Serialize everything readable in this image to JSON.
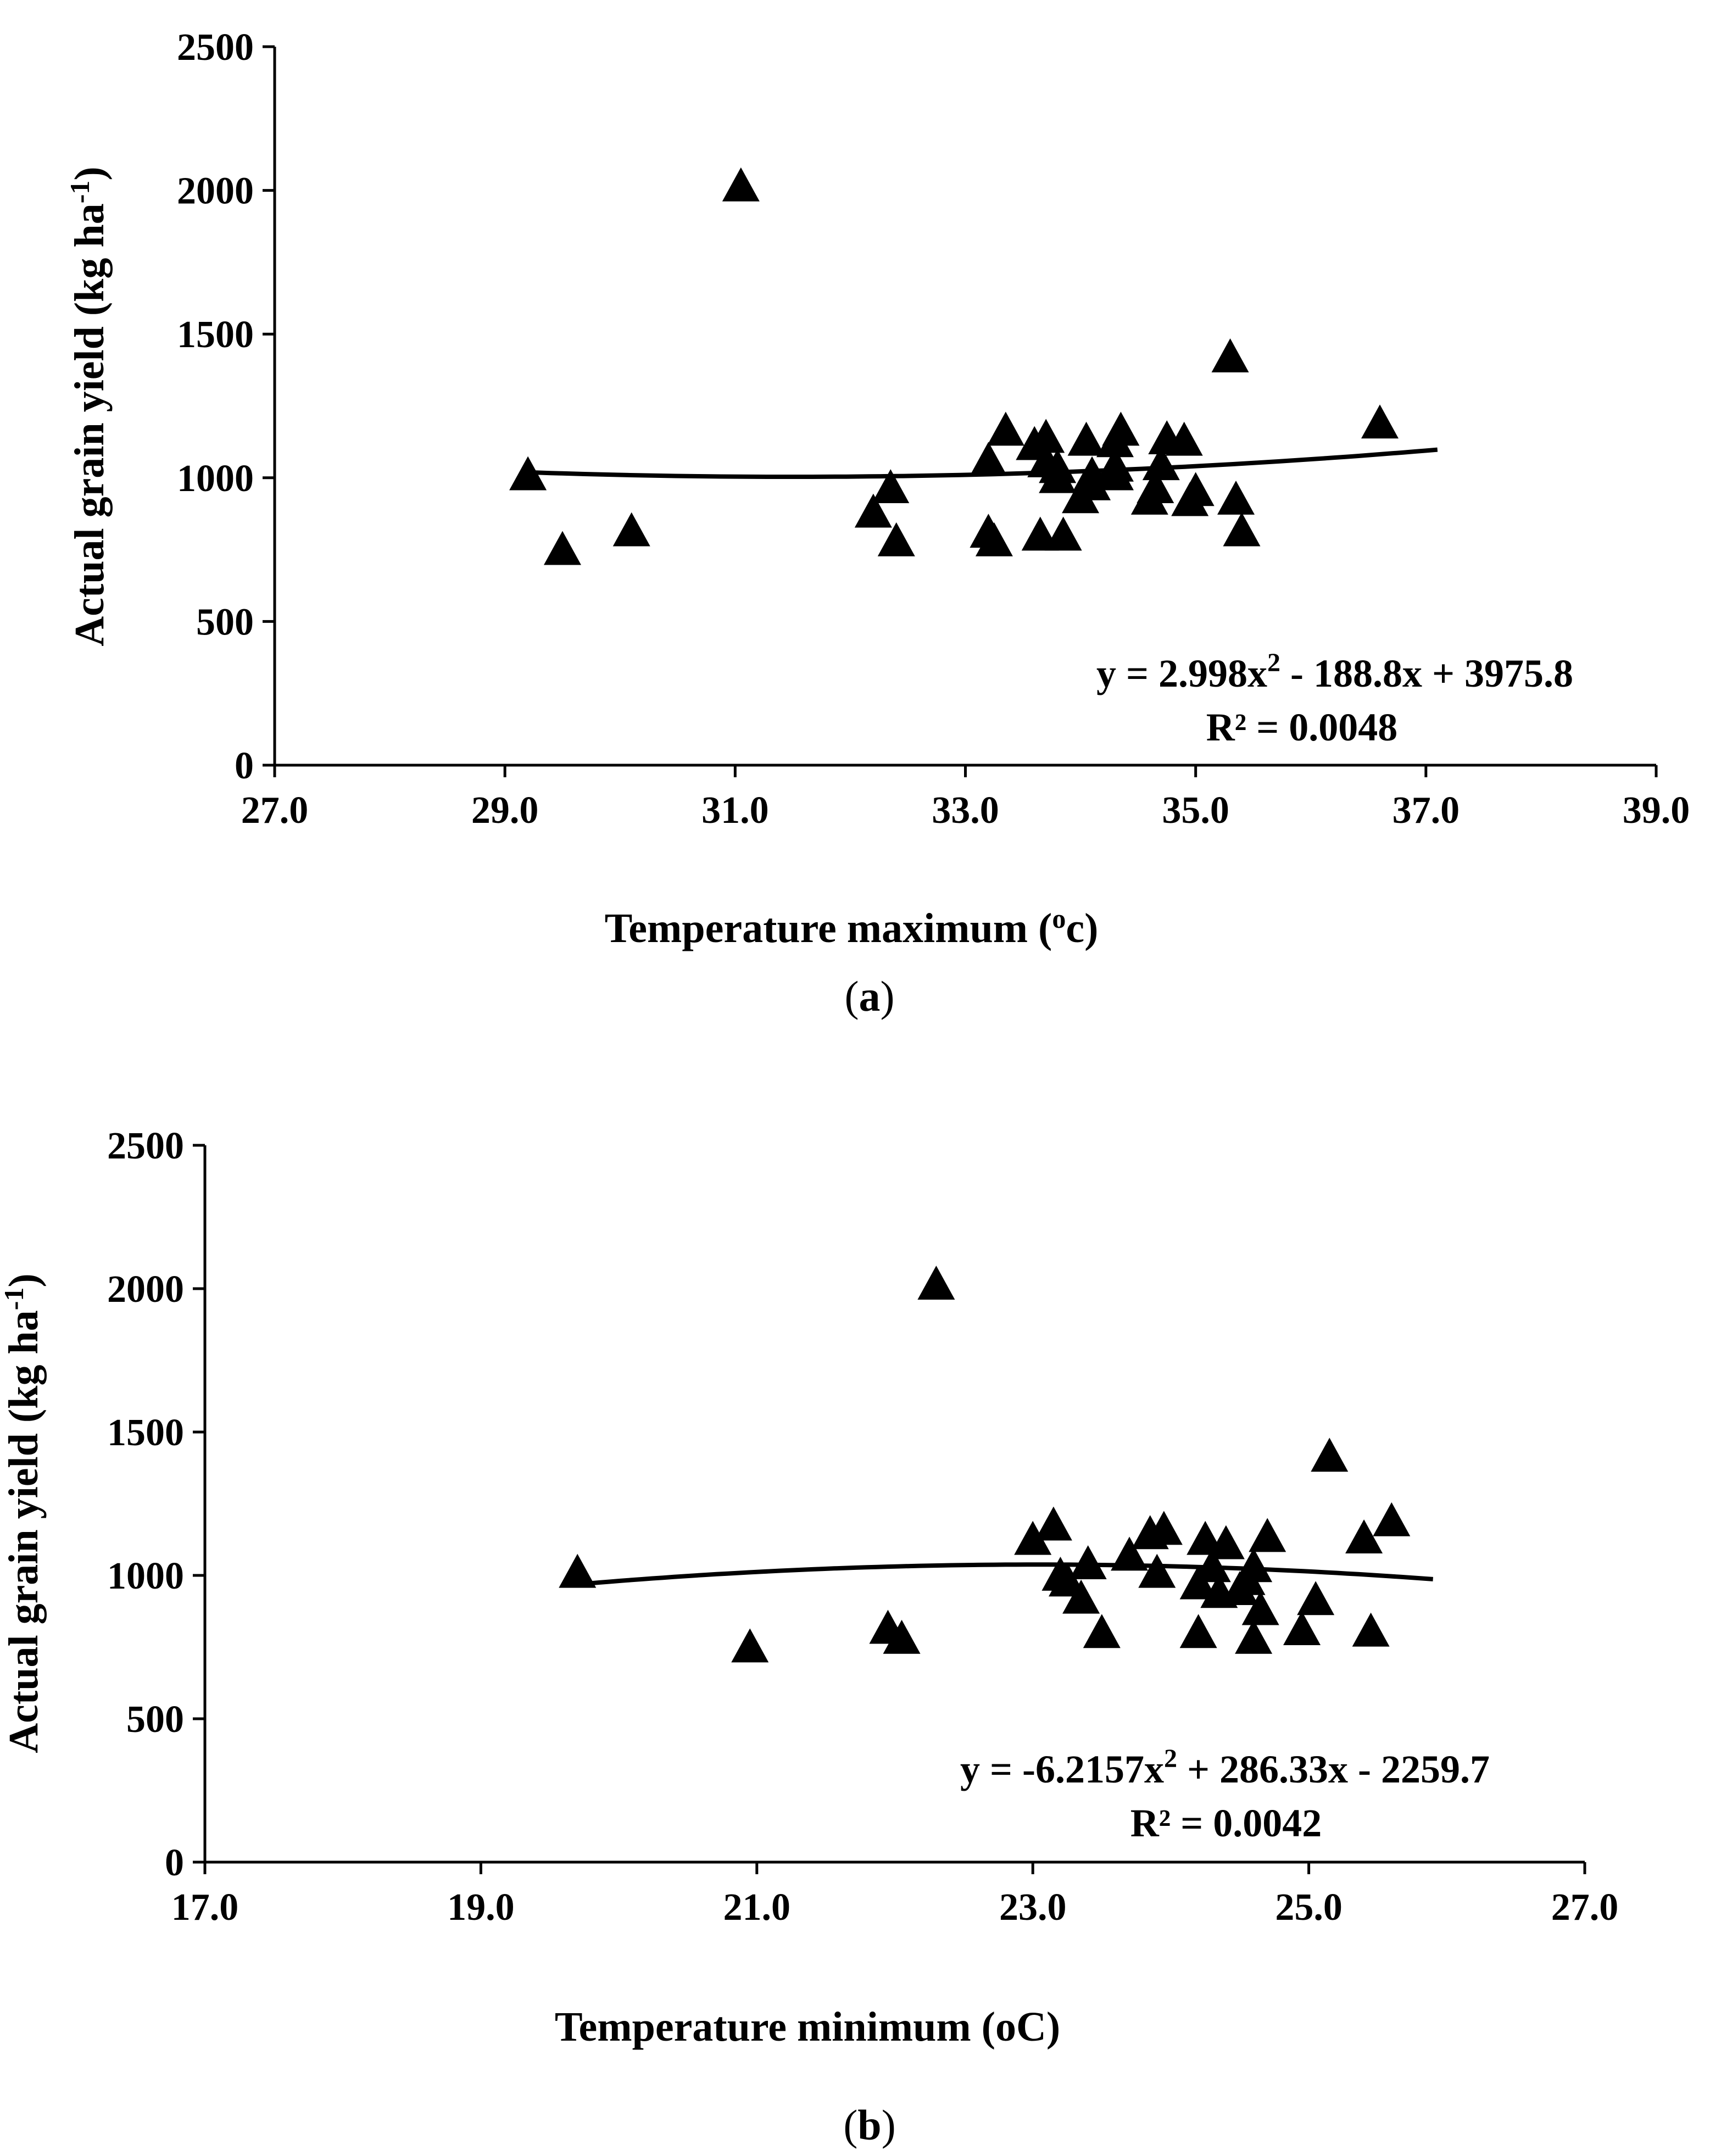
{
  "chart_data": [
    {
      "type": "scatter",
      "panel_label": "a",
      "xlabel": {
        "main": "Temperature maximum (",
        "sup": "o",
        "tail": "c)"
      },
      "ylabel": {
        "main": "Actual grain yield (kg ha",
        "sup": "-1",
        "tail": ")"
      },
      "xlim": [
        27.0,
        39.0
      ],
      "ylim": [
        0,
        2500
      ],
      "x_ticks": [
        "27.0",
        "29.0",
        "31.0",
        "33.0",
        "35.0",
        "37.0",
        "39.0"
      ],
      "y_ticks": [
        "0",
        "500",
        "1000",
        "1500",
        "2000",
        "2500"
      ],
      "marker": "triangle",
      "marker_color": "#000000",
      "points": [
        [
          29.2,
          1010
        ],
        [
          29.5,
          750
        ],
        [
          30.1,
          815
        ],
        [
          31.05,
          2015
        ],
        [
          32.2,
          880
        ],
        [
          32.35,
          965
        ],
        [
          32.4,
          780
        ],
        [
          33.2,
          810
        ],
        [
          33.25,
          780
        ],
        [
          33.2,
          1060
        ],
        [
          33.35,
          1165
        ],
        [
          33.6,
          1115
        ],
        [
          33.65,
          800
        ],
        [
          33.7,
          1140
        ],
        [
          33.7,
          1055
        ],
        [
          33.8,
          1000
        ],
        [
          33.8,
          1035
        ],
        [
          33.85,
          800
        ],
        [
          34.0,
          930
        ],
        [
          34.05,
          1130
        ],
        [
          34.1,
          975
        ],
        [
          34.1,
          1010
        ],
        [
          34.3,
          1040
        ],
        [
          34.3,
          1125
        ],
        [
          34.35,
          1165
        ],
        [
          34.3,
          1010
        ],
        [
          34.6,
          925
        ],
        [
          34.65,
          965
        ],
        [
          34.7,
          1045
        ],
        [
          34.75,
          1135
        ],
        [
          34.9,
          1130
        ],
        [
          34.95,
          920
        ],
        [
          35.0,
          955
        ],
        [
          35.3,
          1420
        ],
        [
          35.35,
          925
        ],
        [
          35.4,
          815
        ],
        [
          36.6,
          1190
        ]
      ],
      "trendline": {
        "a": 2.998,
        "b": -188.8,
        "c": 3975.8,
        "x_range": [
          29.2,
          37.1
        ]
      },
      "equation_text": {
        "y_part": "y = 2.998x",
        "sq": "2",
        "rest": " - 188.8x + 3975.8"
      },
      "r2_text": "R² = 0.0048"
    },
    {
      "type": "scatter",
      "panel_label": "b",
      "xlabel": {
        "main": "Temperature minimum (oC)",
        "sup": "",
        "tail": ""
      },
      "ylabel": {
        "main": "Actual grain yield (kg ha",
        "sup": "-1",
        "tail": ")"
      },
      "xlim": [
        17.0,
        27.0
      ],
      "ylim": [
        0,
        2500
      ],
      "x_ticks": [
        "17.0",
        "19.0",
        "21.0",
        "23.0",
        "25.0",
        "27.0"
      ],
      "y_ticks": [
        "0",
        "500",
        "1000",
        "1500",
        "2000",
        "2500"
      ],
      "marker": "triangle",
      "marker_color": "#000000",
      "points": [
        [
          19.7,
          1010
        ],
        [
          20.95,
          750
        ],
        [
          21.95,
          815
        ],
        [
          22.05,
          780
        ],
        [
          22.3,
          2015
        ],
        [
          23.0,
          1125
        ],
        [
          23.15,
          1175
        ],
        [
          23.2,
          1000
        ],
        [
          23.25,
          980
        ],
        [
          23.35,
          920
        ],
        [
          23.4,
          1040
        ],
        [
          23.5,
          800
        ],
        [
          23.7,
          1070
        ],
        [
          23.85,
          1145
        ],
        [
          23.9,
          1010
        ],
        [
          23.95,
          1160
        ],
        [
          24.2,
          800
        ],
        [
          24.2,
          970
        ],
        [
          24.25,
          1125
        ],
        [
          24.3,
          1030
        ],
        [
          24.35,
          940
        ],
        [
          24.4,
          1110
        ],
        [
          24.5,
          950
        ],
        [
          24.55,
          985
        ],
        [
          24.6,
          1030
        ],
        [
          24.6,
          780
        ],
        [
          24.65,
          880
        ],
        [
          24.7,
          1135
        ],
        [
          24.95,
          810
        ],
        [
          25.05,
          915
        ],
        [
          25.15,
          1415
        ],
        [
          25.4,
          1130
        ],
        [
          25.45,
          805
        ],
        [
          25.6,
          1190
        ]
      ],
      "trendline": {
        "a": -6.2157,
        "b": 286.33,
        "c": -2259.7,
        "x_range": [
          19.7,
          25.9
        ]
      },
      "equation_text": {
        "y_part": "y = -6.2157x",
        "sq": "2",
        "rest": " + 286.33x - 2259.7"
      },
      "r2_text": "R² = 0.0042"
    }
  ]
}
